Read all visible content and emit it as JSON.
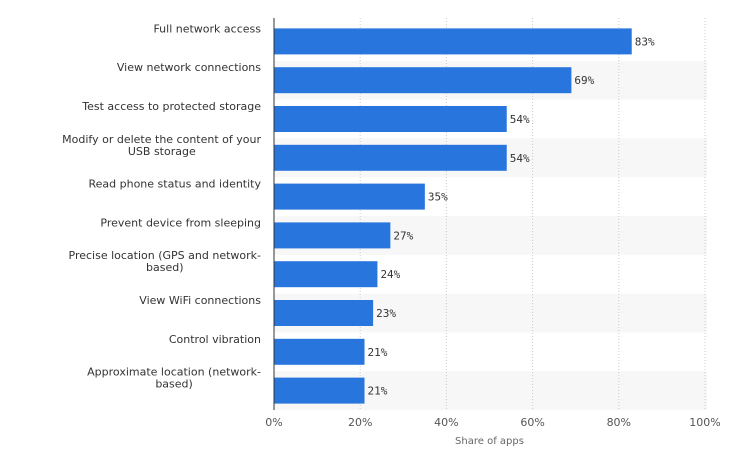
{
  "chart_data": {
    "type": "bar",
    "orientation": "horizontal",
    "categories": [
      [
        "Full network access"
      ],
      [
        "View network connections"
      ],
      [
        "Test access to protected storage"
      ],
      [
        "Modify or delete the content of your",
        "USB storage"
      ],
      [
        "Read phone status and identity"
      ],
      [
        "Prevent device from sleeping"
      ],
      [
        "Precise location (GPS and network-",
        "based)"
      ],
      [
        "View WiFi connections"
      ],
      [
        "Control vibration"
      ],
      [
        "Approximate location (network-",
        "based)"
      ]
    ],
    "values": [
      83,
      69,
      54,
      54,
      35,
      27,
      24,
      23,
      21,
      21
    ],
    "data_labels": [
      "83%",
      "69%",
      "54%",
      "54%",
      "35%",
      "27%",
      "24%",
      "23%",
      "21%",
      "21%"
    ],
    "xlabel": "Share of apps",
    "xlim": [
      0,
      100
    ],
    "x_ticks": [
      0,
      20,
      40,
      60,
      80,
      100
    ],
    "x_tick_labels": [
      "0%",
      "20%",
      "40%",
      "60%",
      "80%",
      "100%"
    ],
    "grid": "vertical dotted",
    "alternating_row_shading": true,
    "colors": {
      "bar": "#2876dd",
      "row_shade": "#f7f7f7",
      "grid": "#cccccc",
      "axis": "#333333"
    }
  }
}
